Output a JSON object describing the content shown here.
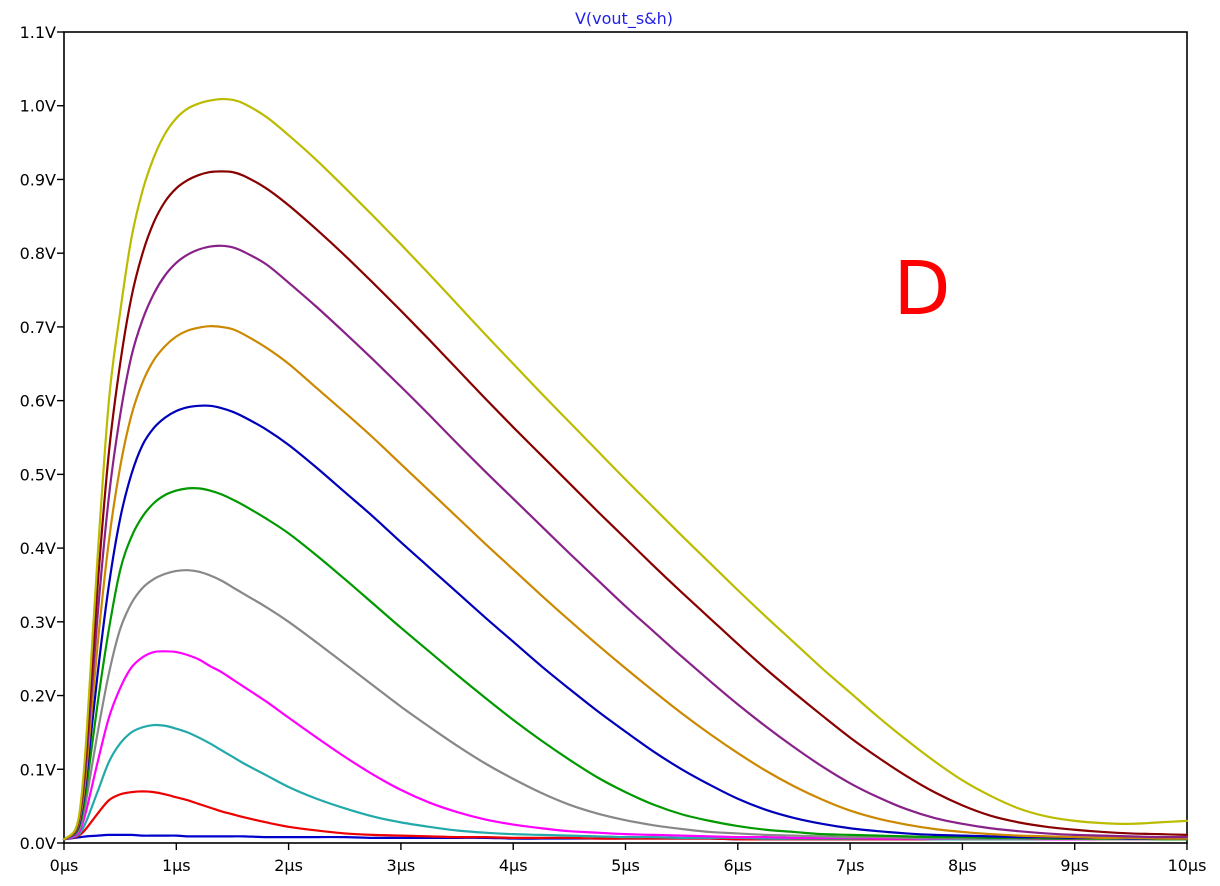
{
  "chart_data": {
    "type": "line",
    "title": "V(vout_s&h)",
    "annotation": "D",
    "xlabel": "",
    "ylabel": "",
    "xlim": [
      0,
      10
    ],
    "ylim": [
      0,
      1.1
    ],
    "grid": false,
    "x_tick_values": [
      0,
      1,
      2,
      3,
      4,
      5,
      6,
      7,
      8,
      9,
      10
    ],
    "x_tick_labels": [
      "0µs",
      "1µs",
      "2µs",
      "3µs",
      "4µs",
      "5µs",
      "6µs",
      "7µs",
      "8µs",
      "9µs",
      "10µs"
    ],
    "y_tick_values": [
      0,
      0.1,
      0.2,
      0.3,
      0.4,
      0.5,
      0.6,
      0.7,
      0.8,
      0.9,
      1.0,
      1.1
    ],
    "y_tick_labels": [
      "0.0V",
      "0.1V",
      "0.2V",
      "0.3V",
      "0.4V",
      "0.5V",
      "0.6V",
      "0.7V",
      "0.8V",
      "0.9V",
      "1.0V",
      "1.1V"
    ],
    "x": [
      0,
      0.1,
      0.15,
      0.2,
      0.3,
      0.4,
      0.5,
      0.6,
      0.7,
      0.8,
      0.9,
      1,
      1.1,
      1.2,
      1.3,
      1.4,
      1.5,
      1.6,
      1.8,
      2,
      2.25,
      2.5,
      2.75,
      3,
      3.25,
      3.5,
      3.75,
      4,
      4.25,
      4.5,
      4.75,
      5,
      5.25,
      5.5,
      5.75,
      6,
      6.25,
      6.5,
      6.75,
      7,
      7.25,
      7.5,
      7.75,
      8,
      8.25,
      8.5,
      8.75,
      9,
      9.25,
      9.5,
      9.75,
      10
    ],
    "series": [
      {
        "color": "#0000cc",
        "values": [
          0.005,
          0.007,
          0.008,
          0.009,
          0.01,
          0.011,
          0.011,
          0.011,
          0.01,
          0.01,
          0.01,
          0.01,
          0.009,
          0.009,
          0.009,
          0.009,
          0.009,
          0.009,
          0.008,
          0.008,
          0.008,
          0.008,
          0.007,
          0.007,
          0.007,
          0.007,
          0.007,
          0.006,
          0.006,
          0.006,
          0.006,
          0.006,
          0.006,
          0.006,
          0.006,
          0.005,
          0.005,
          0.005,
          0.005,
          0.005,
          0.005,
          0.005,
          0.005,
          0.005,
          0.005,
          0.005,
          0.005,
          0.005,
          0.005,
          0.005,
          0.005,
          0.005
        ]
      },
      {
        "color": "#ee0000",
        "values": [
          0.005,
          0.008,
          0.012,
          0.02,
          0.04,
          0.058,
          0.066,
          0.069,
          0.07,
          0.069,
          0.066,
          0.062,
          0.058,
          0.053,
          0.048,
          0.043,
          0.039,
          0.035,
          0.028,
          0.022,
          0.017,
          0.013,
          0.011,
          0.01,
          0.009,
          0.008,
          0.008,
          0.007,
          0.007,
          0.007,
          0.006,
          0.006,
          0.006,
          0.006,
          0.006,
          0.005,
          0.005,
          0.005,
          0.005,
          0.005,
          0.005,
          0.005,
          0.005,
          0.005,
          0.005,
          0.005,
          0.005,
          0.005,
          0.005,
          0.005,
          0.005,
          0.005
        ]
      },
      {
        "color": "#22aaaa",
        "values": [
          0.005,
          0.009,
          0.015,
          0.03,
          0.07,
          0.11,
          0.135,
          0.15,
          0.157,
          0.16,
          0.159,
          0.155,
          0.15,
          0.143,
          0.135,
          0.126,
          0.117,
          0.108,
          0.092,
          0.076,
          0.06,
          0.047,
          0.036,
          0.028,
          0.022,
          0.017,
          0.014,
          0.012,
          0.011,
          0.01,
          0.009,
          0.008,
          0.008,
          0.007,
          0.007,
          0.007,
          0.006,
          0.006,
          0.006,
          0.006,
          0.006,
          0.006,
          0.005,
          0.005,
          0.005,
          0.005,
          0.005,
          0.005,
          0.005,
          0.005,
          0.005,
          0.005
        ]
      },
      {
        "color": "#ff00ff",
        "values": [
          0.005,
          0.01,
          0.02,
          0.045,
          0.11,
          0.17,
          0.21,
          0.238,
          0.252,
          0.259,
          0.26,
          0.259,
          0.255,
          0.249,
          0.24,
          0.232,
          0.222,
          0.212,
          0.192,
          0.17,
          0.143,
          0.117,
          0.093,
          0.072,
          0.055,
          0.042,
          0.032,
          0.025,
          0.02,
          0.016,
          0.014,
          0.012,
          0.011,
          0.01,
          0.009,
          0.008,
          0.008,
          0.007,
          0.007,
          0.007,
          0.006,
          0.006,
          0.006,
          0.006,
          0.006,
          0.006,
          0.005,
          0.005,
          0.005,
          0.005,
          0.005,
          0.005
        ]
      },
      {
        "color": "#888888",
        "values": [
          0.005,
          0.012,
          0.025,
          0.06,
          0.15,
          0.23,
          0.29,
          0.325,
          0.346,
          0.358,
          0.365,
          0.369,
          0.37,
          0.368,
          0.363,
          0.356,
          0.347,
          0.338,
          0.32,
          0.3,
          0.272,
          0.243,
          0.214,
          0.185,
          0.158,
          0.132,
          0.108,
          0.087,
          0.068,
          0.052,
          0.04,
          0.031,
          0.024,
          0.019,
          0.015,
          0.013,
          0.011,
          0.01,
          0.009,
          0.008,
          0.008,
          0.007,
          0.007,
          0.006,
          0.006,
          0.006,
          0.006,
          0.006,
          0.005,
          0.005,
          0.005,
          0.005
        ]
      },
      {
        "color": "#009900",
        "values": [
          0.005,
          0.013,
          0.03,
          0.075,
          0.19,
          0.29,
          0.37,
          0.415,
          0.443,
          0.461,
          0.472,
          0.478,
          0.481,
          0.481,
          0.478,
          0.473,
          0.466,
          0.458,
          0.44,
          0.42,
          0.39,
          0.358,
          0.325,
          0.292,
          0.26,
          0.228,
          0.197,
          0.167,
          0.139,
          0.113,
          0.089,
          0.069,
          0.052,
          0.039,
          0.03,
          0.023,
          0.018,
          0.015,
          0.012,
          0.011,
          0.01,
          0.009,
          0.008,
          0.008,
          0.007,
          0.007,
          0.006,
          0.006,
          0.006,
          0.006,
          0.005,
          0.005
        ]
      },
      {
        "color": "#0000bb",
        "values": [
          0.005,
          0.014,
          0.035,
          0.09,
          0.23,
          0.35,
          0.44,
          0.5,
          0.54,
          0.563,
          0.577,
          0.586,
          0.591,
          0.593,
          0.593,
          0.59,
          0.585,
          0.578,
          0.561,
          0.54,
          0.509,
          0.476,
          0.443,
          0.408,
          0.374,
          0.34,
          0.306,
          0.273,
          0.24,
          0.209,
          0.179,
          0.151,
          0.124,
          0.1,
          0.079,
          0.06,
          0.045,
          0.034,
          0.026,
          0.02,
          0.016,
          0.013,
          0.011,
          0.01,
          0.009,
          0.008,
          0.008,
          0.007,
          0.007,
          0.006,
          0.006,
          0.006
        ]
      },
      {
        "color": "#cc8800",
        "values": [
          0.005,
          0.015,
          0.04,
          0.1,
          0.27,
          0.41,
          0.51,
          0.58,
          0.625,
          0.655,
          0.674,
          0.687,
          0.695,
          0.699,
          0.701,
          0.7,
          0.697,
          0.69,
          0.672,
          0.65,
          0.617,
          0.584,
          0.55,
          0.514,
          0.478,
          0.442,
          0.406,
          0.371,
          0.336,
          0.302,
          0.269,
          0.237,
          0.206,
          0.176,
          0.148,
          0.122,
          0.098,
          0.077,
          0.059,
          0.044,
          0.033,
          0.025,
          0.019,
          0.015,
          0.012,
          0.01,
          0.009,
          0.008,
          0.007,
          0.007,
          0.006,
          0.006
        ]
      },
      {
        "color": "#882288",
        "values": [
          0.005,
          0.016,
          0.045,
          0.115,
          0.31,
          0.47,
          0.58,
          0.66,
          0.71,
          0.745,
          0.77,
          0.787,
          0.798,
          0.805,
          0.809,
          0.81,
          0.808,
          0.802,
          0.785,
          0.76,
          0.727,
          0.692,
          0.656,
          0.619,
          0.581,
          0.542,
          0.504,
          0.467,
          0.43,
          0.393,
          0.357,
          0.321,
          0.287,
          0.253,
          0.22,
          0.188,
          0.158,
          0.13,
          0.104,
          0.081,
          0.062,
          0.046,
          0.034,
          0.026,
          0.02,
          0.016,
          0.013,
          0.011,
          0.01,
          0.009,
          0.008,
          0.008
        ]
      },
      {
        "color": "#880000",
        "values": [
          0.005,
          0.017,
          0.05,
          0.13,
          0.35,
          0.53,
          0.65,
          0.74,
          0.8,
          0.842,
          0.87,
          0.888,
          0.899,
          0.906,
          0.91,
          0.911,
          0.91,
          0.905,
          0.888,
          0.865,
          0.832,
          0.797,
          0.76,
          0.722,
          0.683,
          0.643,
          0.603,
          0.564,
          0.526,
          0.488,
          0.45,
          0.413,
          0.376,
          0.34,
          0.305,
          0.27,
          0.236,
          0.204,
          0.173,
          0.143,
          0.116,
          0.091,
          0.069,
          0.051,
          0.037,
          0.028,
          0.022,
          0.018,
          0.015,
          0.013,
          0.012,
          0.011
        ]
      },
      {
        "color": "#bbbb00",
        "values": [
          0.005,
          0.018,
          0.055,
          0.145,
          0.39,
          0.6,
          0.72,
          0.82,
          0.885,
          0.93,
          0.962,
          0.983,
          0.996,
          1.003,
          1.007,
          1.009,
          1.008,
          1.003,
          0.985,
          0.96,
          0.926,
          0.889,
          0.851,
          0.812,
          0.772,
          0.731,
          0.69,
          0.65,
          0.61,
          0.571,
          0.532,
          0.493,
          0.455,
          0.417,
          0.38,
          0.343,
          0.307,
          0.272,
          0.237,
          0.204,
          0.171,
          0.14,
          0.111,
          0.085,
          0.064,
          0.047,
          0.036,
          0.03,
          0.027,
          0.026,
          0.028,
          0.03
        ]
      }
    ]
  }
}
